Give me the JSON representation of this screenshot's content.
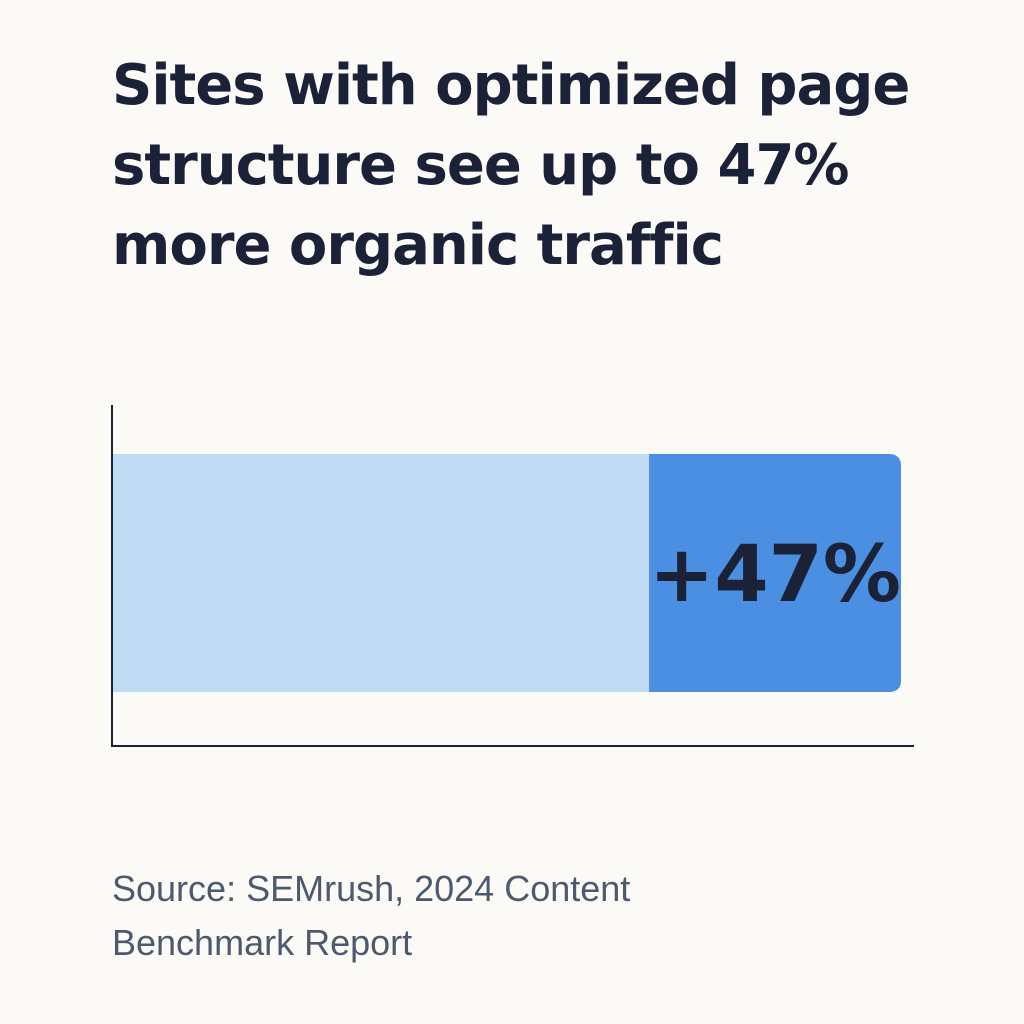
{
  "title": "Sites with optimized page structure see up to 47% more organic traffic",
  "title_lines": [
    "Sites with optimized page",
    "structure see up to 47%",
    "more organic traffic"
  ],
  "source_lines": [
    "Source: SEMrush, 2024 Content",
    "Benchmark Report"
  ],
  "chart_data": {
    "type": "bar",
    "orientation": "horizontal",
    "stacked": true,
    "title": "Sites with optimized page structure see up to 47% more organic traffic",
    "xlabel": "",
    "ylabel": "",
    "grid": false,
    "base_value": 1.0,
    "increase_value": 0.47,
    "increase_label": "+47%",
    "colors": {
      "base": "#c0dcf4",
      "increase": "#4b8fe2",
      "axis": "#1b2238"
    }
  }
}
